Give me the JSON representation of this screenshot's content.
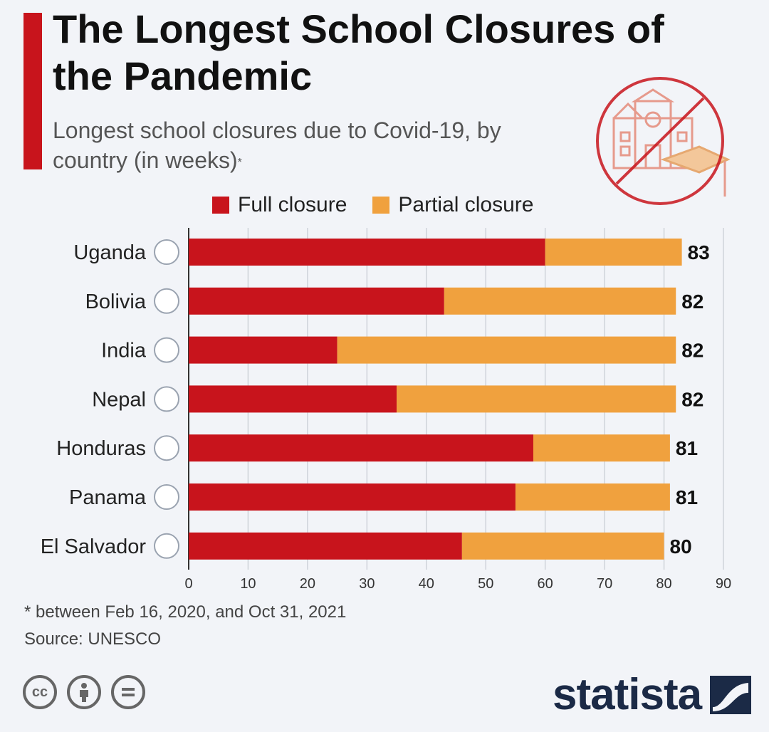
{
  "header": {
    "title": "The Longest School Closures of the Pandemic",
    "subtitle": "Longest school closures due to Covid-19, by country (in weeks)",
    "subtitle_mark": "*"
  },
  "legend": {
    "full_label": "Full closure",
    "partial_label": "Partial closure"
  },
  "colors": {
    "full": "#c8141c",
    "partial": "#f0a13e",
    "accent": "#c8141c",
    "brand": "#1b2a46"
  },
  "chart_data": {
    "type": "bar",
    "orientation": "horizontal",
    "stacked": true,
    "title": "The Longest School Closures of the Pandemic",
    "subtitle": "Longest school closures due to Covid-19, by country (in weeks)*",
    "categories": [
      "Uganda",
      "Bolivia",
      "India",
      "Nepal",
      "Honduras",
      "Panama",
      "El Salvador"
    ],
    "series": [
      {
        "name": "Full closure",
        "values": [
          60,
          43,
          25,
          35,
          58,
          55,
          46
        ]
      },
      {
        "name": "Partial closure",
        "values": [
          23,
          39,
          57,
          47,
          23,
          26,
          34
        ]
      }
    ],
    "totals": [
      83,
      82,
      82,
      82,
      81,
      81,
      80
    ],
    "x_ticks": [
      "0",
      "10",
      "20",
      "30",
      "40",
      "50",
      "60",
      "70",
      "80",
      "90"
    ],
    "xlim": [
      0,
      90
    ],
    "grid": "vertical",
    "legend_position": "top"
  },
  "footer": {
    "footnote": "* between Feb 16, 2020, and Oct 31, 2021",
    "source": "Source: UNESCO",
    "brand": "statista"
  }
}
